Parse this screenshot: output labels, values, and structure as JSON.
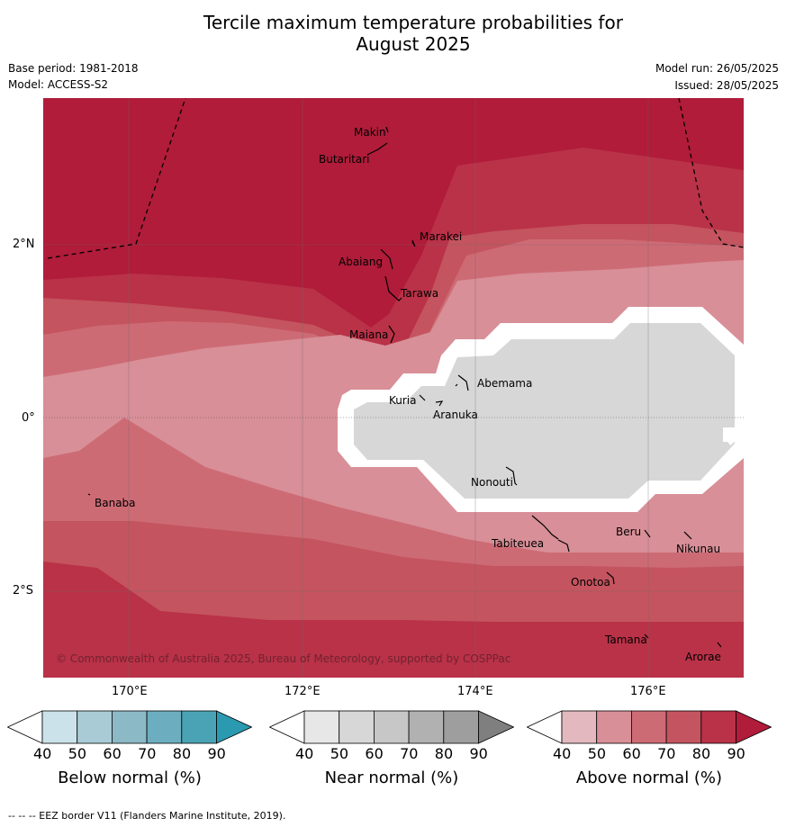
{
  "title": {
    "line1": "Tercile maximum temperature probabilities for",
    "line2": "August 2025"
  },
  "meta": {
    "base_period": "Base period: 1981-2018",
    "model": "Model: ACCESS-S2",
    "model_run": "Model run: 26/05/2025",
    "issued": "Issued: 28/05/2025"
  },
  "map": {
    "lat_ticks": [
      "2°N",
      "0°",
      "2°S"
    ],
    "lon_ticks": [
      "170°E",
      "172°E",
      "174°E",
      "176°E"
    ],
    "copyright": "© Commonwealth of Australia 2025, Bureau of Meteorology, supported by COSPPac",
    "places": [
      "Makin",
      "Butaritari",
      "Marakei",
      "Abaiang",
      "Tarawa",
      "Maiana",
      "Abemama",
      "Kuria",
      "Aranuka",
      "Nonouti",
      "Banaba",
      "Beru",
      "Tabiteuea",
      "Nikunau",
      "Onotoa",
      "Tamana",
      "Arorae"
    ]
  },
  "colorbars": [
    {
      "label": "Below normal (%)",
      "ticks": [
        "40",
        "50",
        "60",
        "70",
        "80",
        "90"
      ],
      "colors": [
        "#ffffff",
        "#cbe2ea",
        "#a9cbd5",
        "#8bb9c6",
        "#6caebf",
        "#4aa3b5",
        "#2b9ab0"
      ]
    },
    {
      "label": "Near normal (%)",
      "ticks": [
        "40",
        "50",
        "60",
        "70",
        "80",
        "90"
      ],
      "colors": [
        "#ffffff",
        "#e7e7e7",
        "#d7d7d7",
        "#c7c7c7",
        "#b1b1b1",
        "#9e9e9e",
        "#7f7f7f"
      ]
    },
    {
      "label": "Above normal (%)",
      "ticks": [
        "40",
        "50",
        "60",
        "70",
        "80",
        "90"
      ],
      "colors": [
        "#ffffff",
        "#e3b9bf",
        "#d88f97",
        "#cd6b75",
        "#c4545f",
        "#b93248",
        "#b01c3a"
      ]
    }
  ],
  "footer": "--  --  -- EEZ border V11 (Flanders Marine Institute, 2019)."
}
